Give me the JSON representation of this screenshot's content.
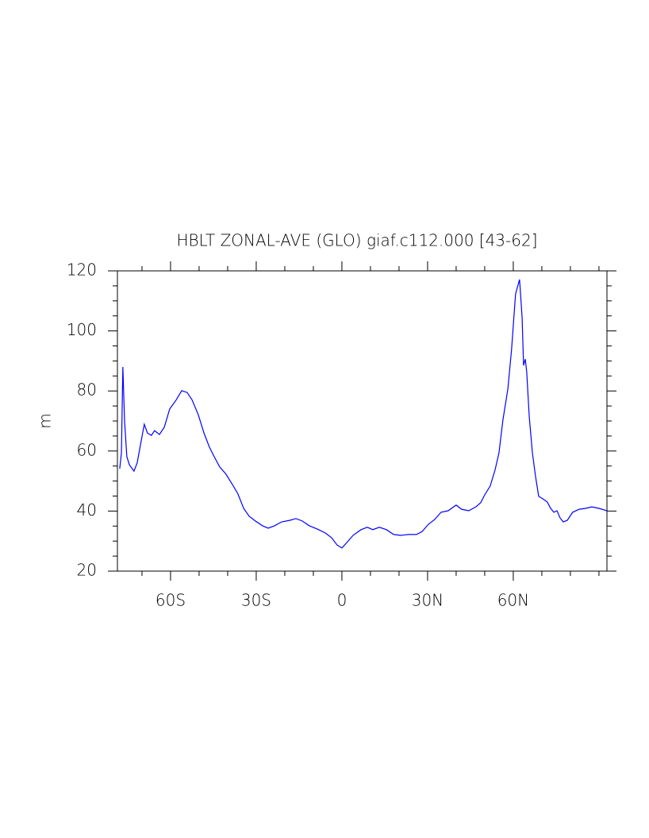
{
  "chart_data": {
    "type": "line",
    "title": "HBLT ZONAL-AVE (GLO) giaf.c112.000 [43-62]",
    "y_label": "m",
    "xlim": [
      -78.6,
      92.8
    ],
    "ylim": [
      20,
      120
    ],
    "xticks": [
      {
        "value": -60,
        "label": "60S"
      },
      {
        "value": -30,
        "label": "30S"
      },
      0,
      {
        "value": 30,
        "label": "30N"
      },
      {
        "value": 60,
        "label": "60N"
      }
    ],
    "yticks": [
      20,
      40,
      60,
      80,
      100,
      120
    ],
    "xminorticks": [
      -70,
      -50,
      -40,
      -20,
      -10,
      10,
      20,
      40,
      50,
      70,
      80,
      90
    ],
    "yminorticks": [
      25,
      30,
      35,
      45,
      50,
      55,
      65,
      70,
      75,
      85,
      90,
      95,
      105,
      110,
      115
    ],
    "series": [
      {
        "color": "#0000ff",
        "x": [
          -77.8,
          -77.2,
          -76.7,
          -76.1,
          -75.3,
          -74.4,
          -72.8,
          -71.7,
          -69.2,
          -68.1,
          -66.7,
          -65.6,
          -63.9,
          -62.2,
          -60.3,
          -58.1,
          -56.1,
          -54.2,
          -52.5,
          -50.3,
          -48.3,
          -46.4,
          -44.7,
          -42.8,
          -40.6,
          -38.3,
          -36.4,
          -34.4,
          -32.5,
          -30.3,
          -27.8,
          -25.8,
          -23.6,
          -21.1,
          -18.3,
          -16.1,
          -13.9,
          -11.4,
          -8.6,
          -5.8,
          -3.6,
          -1.7,
          0,
          1.7,
          3.9,
          6.7,
          8.9,
          10.8,
          13.1,
          15.6,
          18.1,
          20.6,
          23.3,
          26.1,
          28.1,
          30.3,
          32.5,
          34.7,
          37.2,
          40.0,
          41.9,
          44.4,
          46.9,
          48.6,
          50.0,
          51.9,
          53.6,
          55.0,
          56.4,
          58.1,
          59.4,
          60.8,
          62.2,
          63.1,
          63.6,
          64.2,
          64.7,
          65.6,
          66.7,
          67.8,
          68.9,
          70.3,
          71.9,
          73.1,
          74.2,
          75.3,
          76.4,
          77.5,
          78.9,
          80.8,
          83.1,
          85.3,
          87.5,
          90.0,
          92.8
        ],
        "values": [
          54.1,
          59.4,
          88.0,
          70.0,
          58.1,
          55.4,
          53.3,
          56.0,
          68.9,
          66.0,
          65.2,
          66.8,
          65.5,
          67.9,
          74.0,
          76.9,
          80.1,
          79.5,
          77.1,
          72.1,
          66.0,
          61.3,
          58.1,
          54.7,
          52.3,
          48.8,
          45.7,
          40.9,
          38.3,
          36.7,
          35.1,
          34.3,
          35.1,
          36.4,
          36.9,
          37.5,
          36.7,
          35.1,
          34.0,
          32.7,
          31.1,
          28.7,
          27.7,
          29.5,
          31.9,
          33.8,
          34.6,
          33.8,
          34.6,
          33.8,
          32.2,
          31.9,
          32.2,
          32.2,
          33.2,
          35.6,
          37.2,
          39.6,
          40.1,
          42.0,
          40.6,
          40.1,
          41.4,
          42.8,
          45.4,
          48.3,
          53.6,
          59.4,
          70.5,
          80.6,
          93.8,
          112.3,
          117.1,
          104.4,
          88.5,
          90.6,
          86.4,
          71.3,
          59.4,
          51.5,
          44.9,
          44.1,
          43.0,
          40.9,
          39.6,
          40.1,
          37.7,
          36.4,
          36.9,
          39.6,
          40.6,
          40.9,
          41.4,
          40.9,
          40.1
        ]
      }
    ]
  }
}
